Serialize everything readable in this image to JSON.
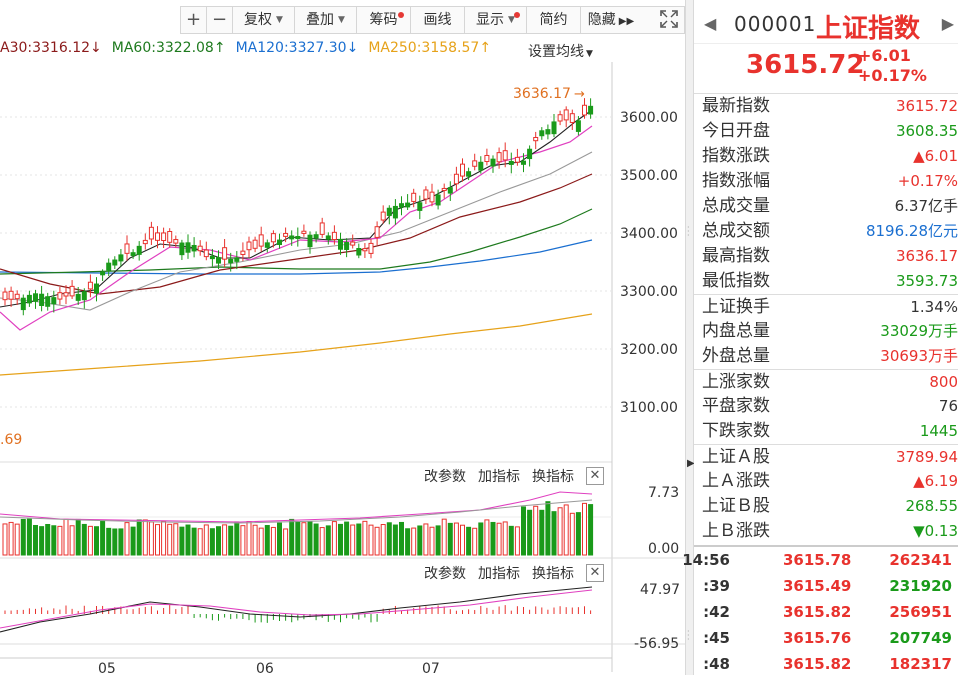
{
  "toolbar": {
    "plus": "+",
    "minus": "−",
    "items": [
      {
        "label": "复权",
        "caret": true,
        "dot": false
      },
      {
        "label": "叠加",
        "caret": true,
        "dot": false
      },
      {
        "label": "筹码",
        "caret": false,
        "dot": true
      },
      {
        "label": "画线",
        "caret": false,
        "dot": false
      },
      {
        "label": "显示",
        "caret": true,
        "dot": true
      },
      {
        "label": "简约",
        "caret": false,
        "dot": false
      },
      {
        "label": "隐藏",
        "caret": false,
        "dot": false
      }
    ],
    "more_icon": "double-chevron-right-icon"
  },
  "ma_legend": [
    {
      "text": "A30:3316.12",
      "arrow": "↓",
      "color": "#8b1a1a"
    },
    {
      "text": "MA60:3322.08",
      "arrow": "↑",
      "color": "#1e7a1e"
    },
    {
      "text": "MA120:3327.30",
      "arrow": "↓",
      "color": "#1b6fd0"
    },
    {
      "text": "MA250:3158.57",
      "arrow": "↑",
      "color": "#e6a21a"
    }
  ],
  "ma_setting_label": "设置均线",
  "main_chart": {
    "high_marker": "3636.17",
    "low_marker_fragment": ".69",
    "y_ticks": [
      "3600.00",
      "3500.00",
      "3400.00",
      "3300.00",
      "3200.00",
      "3100.00"
    ]
  },
  "sub1": {
    "buttons": [
      "改参数",
      "加指标",
      "换指标"
    ],
    "y_ticks": [
      "7.73",
      "0.00"
    ]
  },
  "sub2": {
    "buttons": [
      "改参数",
      "加指标",
      "换指标"
    ],
    "y_ticks": [
      "47.97",
      "-56.95"
    ]
  },
  "x_labels": [
    "05",
    "06",
    "07"
  ],
  "colors": {
    "up": "#e8322d",
    "down": "#1a9a1a"
  },
  "right_panel": {
    "code": "000001",
    "name": "上证指数",
    "price": "3615.72",
    "change": "+6.01",
    "change_pct": "+0.17%",
    "rows": [
      {
        "label": "最新指数",
        "value": "3615.72",
        "cls": "up"
      },
      {
        "label": "今日开盘",
        "value": "3608.35",
        "cls": "dn"
      },
      {
        "label": "指数涨跌",
        "value": "▲6.01",
        "cls": "up"
      },
      {
        "label": "指数涨幅",
        "value": "+0.17%",
        "cls": "up"
      },
      {
        "label": "总成交量",
        "value": "6.37亿手",
        "cls": "neu"
      },
      {
        "label": "总成交额",
        "value": "8196.28亿元",
        "cls": "blue"
      },
      {
        "label": "最高指数",
        "value": "3636.17",
        "cls": "up"
      },
      {
        "label": "最低指数",
        "value": "3593.73",
        "cls": "dn"
      },
      {
        "label": "上证换手",
        "value": "1.34%",
        "cls": "neu",
        "sep": true
      },
      {
        "label": "内盘总量",
        "value": "33029万手",
        "cls": "dn"
      },
      {
        "label": "外盘总量",
        "value": "30693万手",
        "cls": "up"
      },
      {
        "label": "上涨家数",
        "value": "800",
        "cls": "up",
        "sep": true
      },
      {
        "label": "平盘家数",
        "value": "76",
        "cls": "neu"
      },
      {
        "label": "下跌家数",
        "value": "1445",
        "cls": "dn"
      },
      {
        "label": "上证Ａ股",
        "value": "3789.94",
        "cls": "up",
        "sep": true
      },
      {
        "label": "上Ａ涨跌",
        "value": "▲6.19",
        "cls": "up"
      },
      {
        "label": "上证Ｂ股",
        "value": "268.55",
        "cls": "dn"
      },
      {
        "label": "上Ｂ涨跌",
        "value": "▼0.13",
        "cls": "dn"
      }
    ],
    "ticks": [
      {
        "time": "14:56",
        "price": "3615.78",
        "vol": "262341",
        "vcls": "up"
      },
      {
        "time": ":39",
        "price": "3615.49",
        "vol": "231920",
        "vcls": "dn"
      },
      {
        "time": ":42",
        "price": "3615.82",
        "vol": "256951",
        "vcls": "up"
      },
      {
        "time": ":45",
        "price": "3615.76",
        "vol": "207749",
        "vcls": "dn"
      },
      {
        "time": ":48",
        "price": "3615.82",
        "vol": "182317",
        "vcls": "up"
      }
    ]
  }
}
